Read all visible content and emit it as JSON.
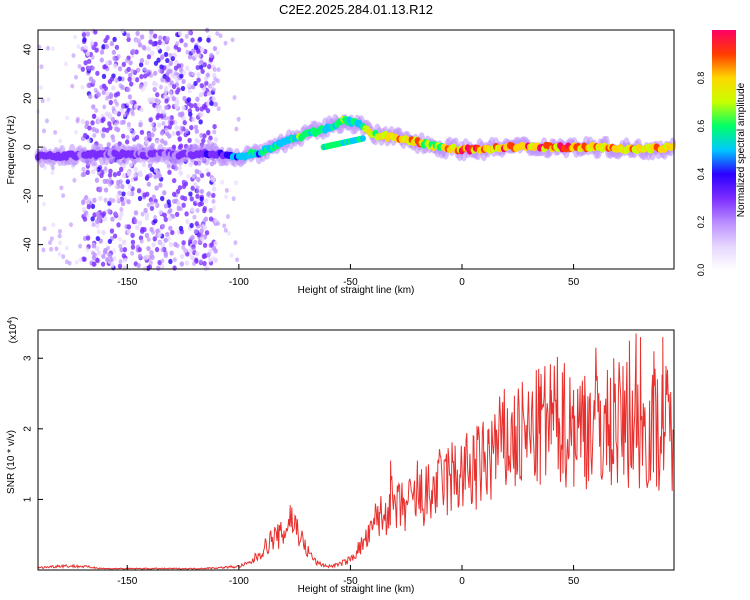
{
  "title": "C2E2.2025.284.01.13.R12",
  "colors": {
    "snr_line": "#e8312e",
    "axis": "#000000",
    "colormap": [
      "#ffffff",
      "#e6d6ff",
      "#b98cff",
      "#7b2cff",
      "#2a00ff",
      "#00c8ff",
      "#00ff66",
      "#c8ff00",
      "#ffd700",
      "#ff3c00",
      "#ff0066"
    ]
  },
  "colorbar": {
    "label": "Normalized spectral amplitude",
    "range": [
      0,
      1
    ],
    "tick_labels": [
      "0.0",
      "0.2",
      "0.4",
      "0.6",
      "0.8"
    ],
    "tick_values": [
      0,
      0.2,
      0.4,
      0.6,
      0.8
    ]
  },
  "chart_data": [
    {
      "type": "heatmap",
      "title": "C2E2.2025.284.01.13.R12",
      "xlabel": "Height of straight line (km)",
      "ylabel": "Frequency (Hz)",
      "xlim": [
        -190,
        95
      ],
      "ylim": [
        -50,
        48
      ],
      "x_ticks": [
        -150,
        -100,
        -50,
        0,
        50
      ],
      "x_tick_labels": [
        "-150",
        "-100",
        "-50",
        "0",
        "50"
      ],
      "y_ticks": [
        -40,
        -20,
        0,
        20,
        40
      ],
      "y_tick_labels": [
        "-40",
        "-20",
        "0",
        "20",
        "40"
      ],
      "grid": false,
      "ridge": {
        "description_points_x": [
          -190,
          -160,
          -130,
          -110,
          -100,
          -90,
          -80,
          -70,
          -60,
          -52,
          -46,
          -40,
          -30,
          -20,
          -10,
          0,
          10,
          20,
          40,
          60,
          80,
          95
        ],
        "frequency_hz": [
          -4,
          -3,
          -3,
          -3,
          -4,
          -2,
          2,
          5,
          8,
          11,
          9,
          5,
          4,
          2,
          0,
          -1,
          -1,
          0,
          0,
          0,
          -1,
          0
        ],
        "peak_amplitude": [
          0.35,
          0.3,
          0.3,
          0.35,
          0.55,
          0.55,
          0.6,
          0.65,
          0.6,
          0.7,
          0.6,
          0.8,
          0.85,
          0.85,
          0.75,
          0.95,
          0.9,
          0.95,
          0.95,
          0.9,
          0.85,
          0.9
        ]
      },
      "noise_band_x": [
        -170,
        -110
      ],
      "noise_band_y": [
        -50,
        48
      ]
    },
    {
      "type": "line",
      "xlabel": "Height of straight line (km)",
      "ylabel": "SNR (10 * v/v)",
      "y_multiplier": "(x10",
      "y_multiplier_exp": "4",
      "y_multiplier_close": ")",
      "xlim": [
        -190,
        95
      ],
      "ylim": [
        0,
        3.4
      ],
      "x_ticks": [
        -150,
        -100,
        -50,
        0,
        50
      ],
      "x_tick_labels": [
        "-150",
        "-100",
        "-50",
        "0",
        "50"
      ],
      "y_ticks": [
        1,
        2,
        3
      ],
      "y_tick_labels": [
        "1",
        "2",
        "3"
      ],
      "grid": false,
      "series": [
        {
          "x": [
            -190,
            -180,
            -170,
            -160,
            -150,
            -140,
            -130,
            -120,
            -110,
            -100,
            -95,
            -90,
            -85,
            -80,
            -77,
            -74,
            -70,
            -65,
            -60,
            -55,
            -50,
            -45,
            -40,
            -38,
            -35,
            -33,
            -30,
            -25,
            -20,
            -15,
            -10,
            -5,
            0,
            5,
            10,
            15,
            20,
            25,
            30,
            35,
            40,
            45,
            50,
            55,
            60,
            65,
            70,
            75,
            80,
            85,
            90,
            95
          ],
          "values": [
            0.03,
            0.06,
            0.05,
            0.02,
            0.02,
            0.02,
            0.02,
            0.02,
            0.03,
            0.05,
            0.1,
            0.25,
            0.45,
            0.5,
            0.75,
            0.6,
            0.3,
            0.1,
            0.05,
            0.08,
            0.15,
            0.35,
            0.55,
            0.8,
            0.7,
            1.0,
            0.85,
            0.9,
            1.0,
            1.05,
            1.2,
            1.3,
            1.35,
            1.4,
            1.5,
            1.7,
            1.8,
            1.85,
            1.9,
            2.0,
            2.1,
            2.1,
            2.0,
            2.05,
            2.1,
            2.0,
            2.05,
            2.1,
            2.0,
            2.0,
            2.05,
            2.0
          ],
          "peaks": [
            [
              -77,
              0.92
            ],
            [
              -37,
              0.82
            ],
            [
              -32,
              1.55
            ],
            [
              -20,
              1.55
            ],
            [
              -8,
              1.55
            ],
            [
              5,
              1.9
            ],
            [
              12,
              2.0
            ],
            [
              15,
              1.95
            ],
            [
              25,
              2.3
            ],
            [
              35,
              2.6
            ],
            [
              40,
              2.55
            ],
            [
              45,
              2.8
            ],
            [
              50,
              2.55
            ],
            [
              55,
              2.75
            ],
            [
              60,
              3.15
            ],
            [
              62,
              2.4
            ],
            [
              68,
              3.0
            ],
            [
              75,
              3.25
            ],
            [
              78,
              3.35
            ],
            [
              80,
              3.3
            ],
            [
              86,
              3.1
            ],
            [
              90,
              3.3
            ]
          ]
        }
      ]
    }
  ]
}
